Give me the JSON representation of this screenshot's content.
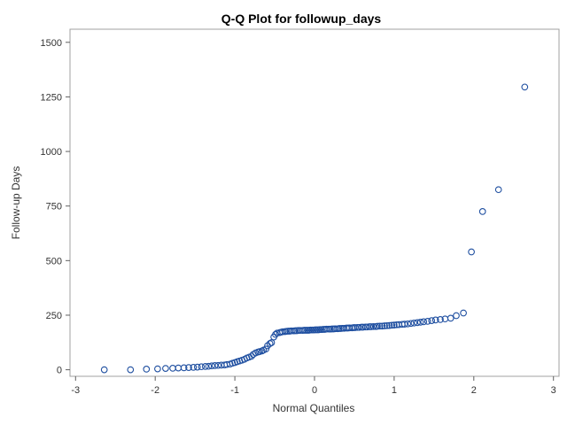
{
  "chart_data": {
    "type": "scatter",
    "title": "Q-Q Plot for followup_days",
    "xlabel": "Normal Quantiles",
    "ylabel": "Follow-up Days",
    "xlim": [
      -3.07,
      3.07
    ],
    "ylim": [
      -30,
      1560
    ],
    "xticks": [
      -3,
      -2,
      -1,
      0,
      1,
      2,
      3
    ],
    "yticks": [
      0,
      250,
      500,
      750,
      1000,
      1250,
      1500
    ],
    "grid": false,
    "marker_color": "#1f4fa0",
    "series": [
      {
        "x": [
          -2.64,
          -2.31,
          -2.11,
          -1.97,
          -1.87,
          -1.78,
          -1.71,
          -1.64,
          -1.58,
          -1.52,
          -1.47,
          -1.42,
          -1.37,
          -1.33,
          -1.29,
          -1.25,
          -1.21,
          -1.17,
          -1.13,
          -1.1,
          -1.06,
          -1.03,
          -1.0,
          -0.97,
          -0.94,
          -0.91,
          -0.88,
          -0.85,
          -0.82,
          -0.79,
          -0.77,
          -0.74,
          -0.71,
          -0.69,
          -0.66,
          -0.64,
          -0.61,
          -0.59,
          -0.56,
          -0.54,
          -0.51,
          -0.49,
          -0.47,
          -0.44,
          -0.42,
          -0.4,
          -0.37,
          -0.35,
          -0.33,
          -0.31,
          -0.29,
          -0.26,
          -0.24,
          -0.22,
          -0.2,
          -0.18,
          -0.15,
          -0.13,
          -0.11,
          -0.09,
          -0.07,
          -0.05,
          -0.03,
          -0.01,
          0.01,
          0.03,
          0.05,
          0.07,
          0.09,
          0.11,
          0.13,
          0.15,
          0.18,
          0.2,
          0.22,
          0.24,
          0.26,
          0.29,
          0.31,
          0.33,
          0.35,
          0.37,
          0.4,
          0.42,
          0.44,
          0.47,
          0.49,
          0.51,
          0.54,
          0.56,
          0.59,
          0.61,
          0.64,
          0.66,
          0.69,
          0.71,
          0.74,
          0.77,
          0.79,
          0.82,
          0.85,
          0.88,
          0.91,
          0.94,
          0.97,
          1.0,
          1.03,
          1.06,
          1.1,
          1.13,
          1.17,
          1.21,
          1.25,
          1.29,
          1.33,
          1.37,
          1.42,
          1.47,
          1.52,
          1.58,
          1.64,
          1.71,
          1.78,
          1.87,
          1.97,
          2.11,
          2.31,
          2.64
        ],
        "y": [
          0,
          0,
          3,
          4,
          6,
          7,
          8,
          9,
          10,
          11,
          12,
          14,
          15,
          16,
          18,
          19,
          20,
          21,
          22,
          24,
          26,
          30,
          33,
          37,
          40,
          44,
          48,
          54,
          58,
          62,
          70,
          77,
          81,
          83,
          86,
          90,
          95,
          110,
          120,
          124,
          150,
          162,
          168,
          170,
          172,
          174,
          175,
          176,
          177,
          177,
          178,
          178,
          179,
          179,
          180,
          180,
          180,
          181,
          181,
          181,
          181,
          182,
          182,
          182,
          183,
          183,
          183,
          184,
          184,
          185,
          185,
          186,
          186,
          186,
          187,
          187,
          188,
          188,
          189,
          189,
          190,
          190,
          191,
          191,
          192,
          192,
          193,
          193,
          194,
          194,
          195,
          195,
          196,
          196,
          197,
          197,
          198,
          198,
          199,
          200,
          200,
          201,
          202,
          203,
          204,
          205,
          206,
          207,
          208,
          209,
          210,
          212,
          214,
          216,
          218,
          220,
          222,
          225,
          228,
          230,
          233,
          236,
          248,
          260,
          540,
          725,
          825,
          1295
        ]
      }
    ]
  }
}
